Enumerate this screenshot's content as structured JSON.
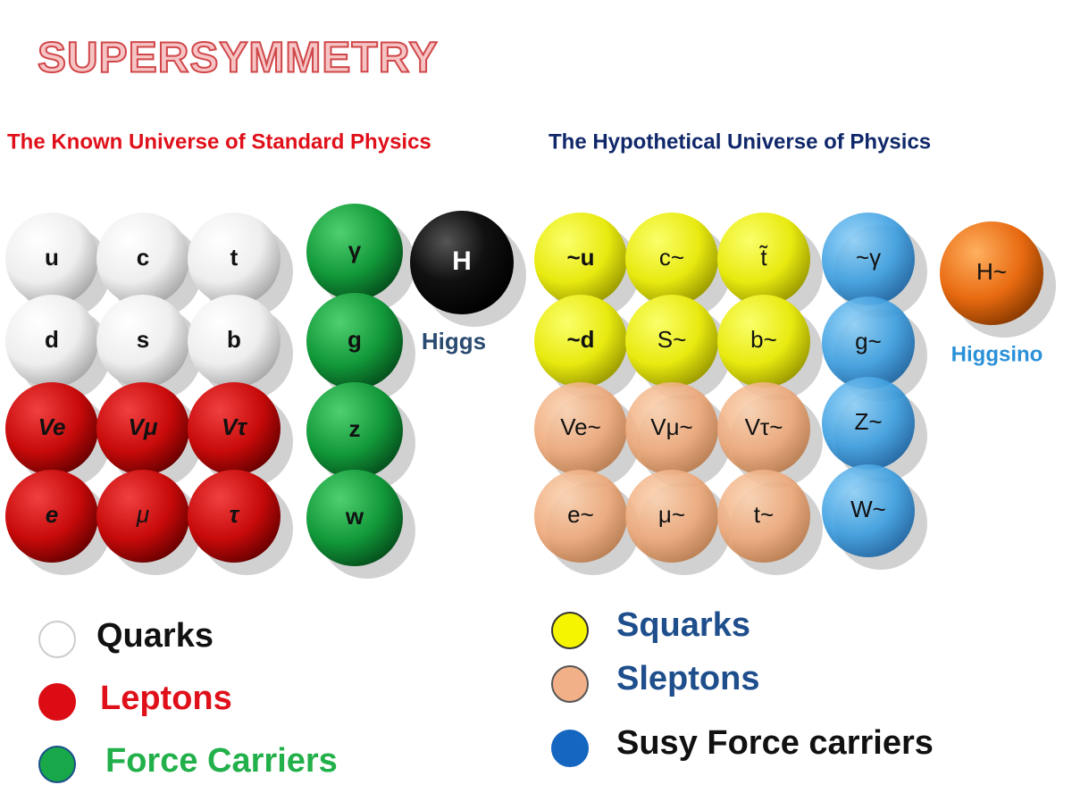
{
  "title": "SUPERSYMMETRY",
  "standard": {
    "heading": "The Known Universe of Standard Physics",
    "fermions": [
      [
        "u",
        "c",
        "t"
      ],
      [
        "d",
        "s",
        "b"
      ],
      [
        "Ve",
        "Vμ",
        "Vτ"
      ],
      [
        "e",
        "μ",
        "τ"
      ]
    ],
    "force_carriers": [
      "γ",
      "g",
      "z",
      "w"
    ],
    "higgs": {
      "symbol": "H",
      "label": "Higgs"
    }
  },
  "hypothetical": {
    "heading": "The Hypothetical Universe of Physics",
    "fermions": [
      [
        "~u",
        "c~",
        "t̃"
      ],
      [
        "~d",
        "S~",
        "b~"
      ],
      [
        "Ve~",
        "Vμ~",
        "Vτ~"
      ],
      [
        "e~",
        "μ~",
        "t~"
      ]
    ],
    "force_carriers": [
      "~γ",
      "g~",
      "Z~",
      "W~"
    ],
    "higgs": {
      "symbol": "H~",
      "label": "Higgsino"
    }
  },
  "legend_left": [
    "Quarks",
    "Leptons",
    "Force Carriers"
  ],
  "legend_right": [
    "Squarks",
    "Sleptons",
    "Susy Force carriers"
  ]
}
